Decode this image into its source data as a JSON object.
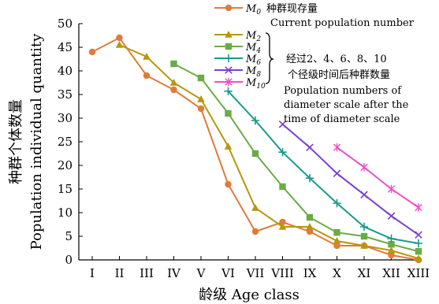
{
  "chart_data": {
    "type": "line",
    "xlabel": "龄级 Age class",
    "ylabel_cn": "种群个体数量",
    "ylabel_en": "Population individual quantity",
    "categories": [
      "I",
      "II",
      "III",
      "IV",
      "V",
      "VI",
      "VII",
      "VIII",
      "IX",
      "X",
      "XI",
      "XII",
      "XIII"
    ],
    "ylim": [
      0,
      50
    ],
    "yticks": [
      "0",
      "5",
      "10",
      "15",
      "20",
      "25",
      "30",
      "35",
      "40",
      "45",
      "50"
    ],
    "grid": false,
    "series": [
      {
        "name": "M0",
        "color": "#e07b39",
        "marker": "circle",
        "values": [
          44,
          47,
          39,
          36,
          32,
          16,
          6,
          8,
          6,
          3,
          3,
          1,
          0
        ]
      },
      {
        "name": "M2",
        "color": "#b8960c",
        "marker": "triangle",
        "values": [
          null,
          45.5,
          43,
          37.5,
          34,
          24,
          11,
          7,
          7,
          4,
          3,
          2,
          0.3
        ]
      },
      {
        "name": "M4",
        "color": "#6aab46",
        "marker": "square",
        "values": [
          null,
          null,
          null,
          41.5,
          38.5,
          31,
          22.5,
          15.5,
          9,
          5.8,
          5,
          3.3,
          1.8
        ]
      },
      {
        "name": "M6",
        "color": "#1a9a8a",
        "marker": "plus",
        "values": [
          null,
          null,
          null,
          null,
          null,
          35.7,
          29.5,
          22.8,
          17.3,
          12,
          7,
          4.5,
          3.5
        ]
      },
      {
        "name": "M8",
        "color": "#7b3fd1",
        "marker": "cross",
        "values": [
          null,
          null,
          null,
          null,
          null,
          null,
          null,
          28.7,
          23.8,
          18.3,
          13.8,
          9.3,
          5.3
        ]
      },
      {
        "name": "M10",
        "color": "#ee4fc8",
        "marker": "asterisk",
        "values": [
          null,
          null,
          null,
          null,
          null,
          null,
          null,
          null,
          null,
          23.8,
          19.6,
          15,
          11.1
        ]
      }
    ],
    "legend": {
      "placement": "top-right",
      "m0_note_cn": "种群现存量",
      "m0_note_en": "Current population number",
      "group_note_cn_1": "经过2、4、6、8、10",
      "group_note_cn_2": "个径级时间后种群数量",
      "group_note_en_1": "Population numbers of",
      "group_note_en_2": "diameter scale after the",
      "group_note_en_3": "time of diameter scale"
    }
  }
}
